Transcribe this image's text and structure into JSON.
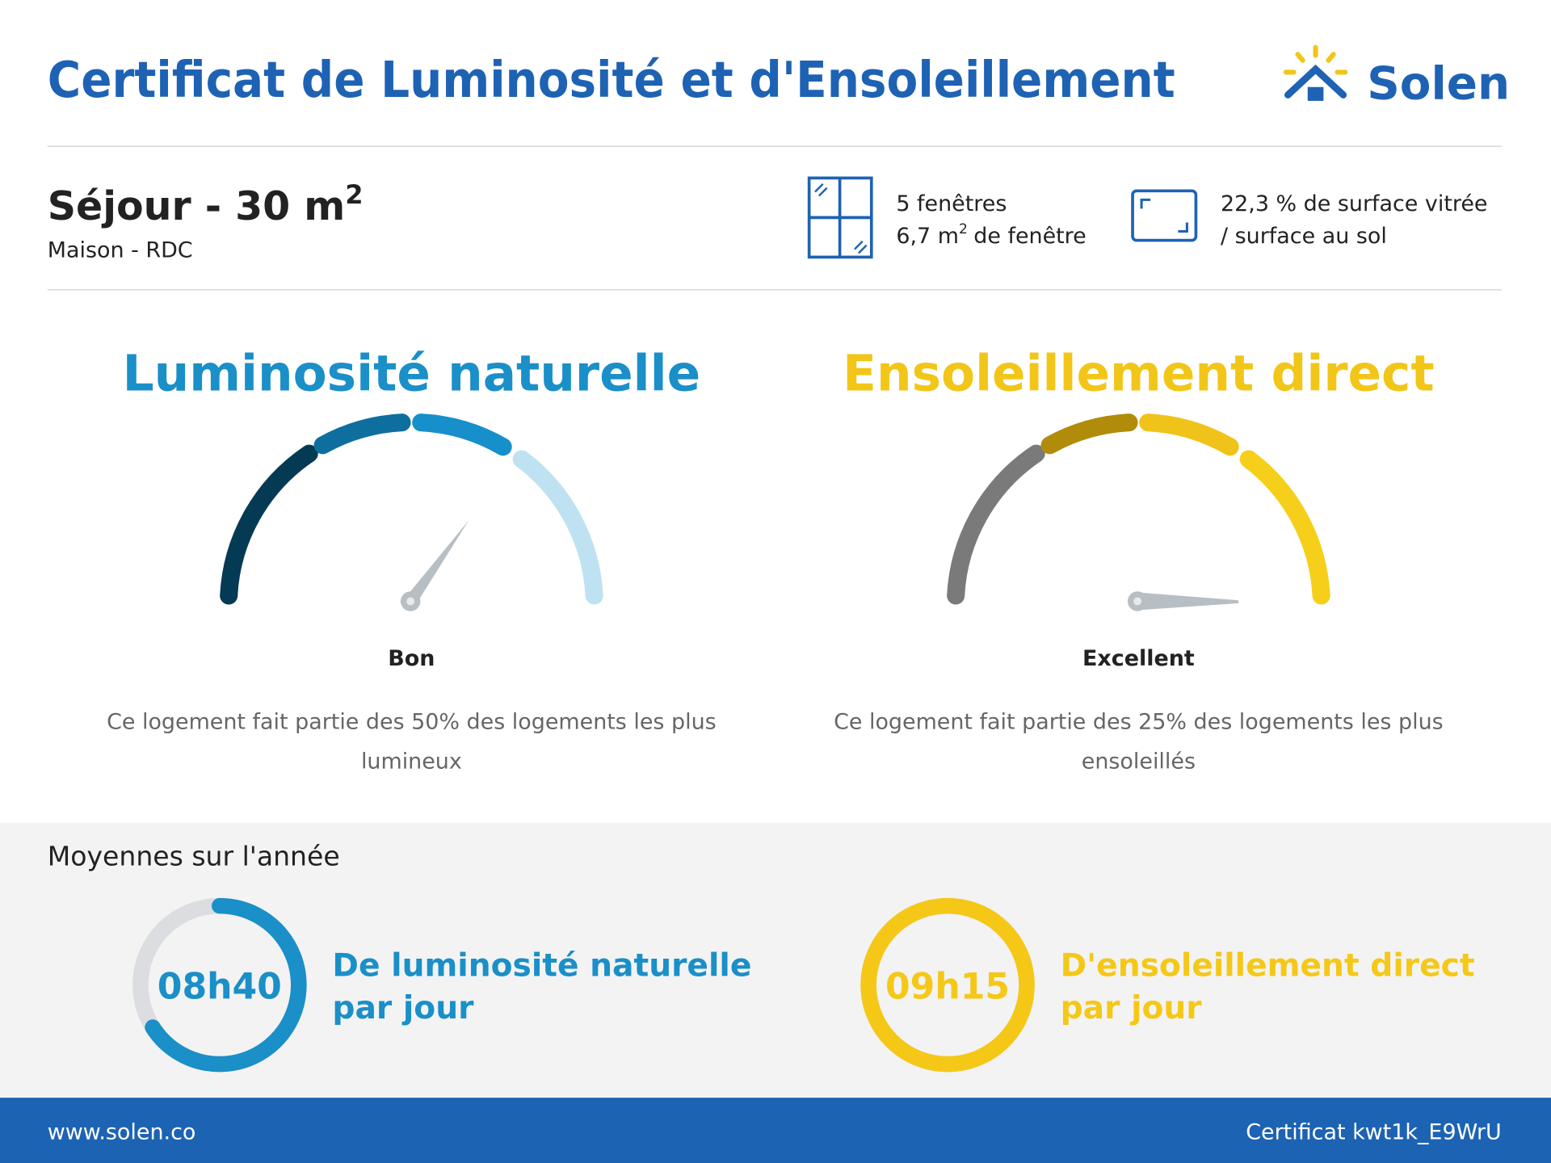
{
  "header": {
    "title": "Certificat de Luminosité et d'Ensoleillement",
    "logo": "Solen"
  },
  "room": {
    "name": "Séjour - 30 m",
    "name_sup": "2",
    "location": "Maison - RDC"
  },
  "windows": {
    "count": "5 fenêtres",
    "area": "6,7 m",
    "area_sup": "2",
    "area_suffix": "de fenêtre"
  },
  "glazing": {
    "lines": [
      "22,3 % de surface vitrée",
      "/ surface au sol"
    ]
  },
  "gauges": [
    {
      "title": "Luminosité naturelle",
      "color": "#1a8fc8",
      "segment_colors": [
        "#053a55",
        "#0e6f9e",
        "#168fca",
        "#bfe2f2"
      ],
      "rating": "Bon",
      "description": [
        "Ce logement fait partie des 50% des logements les plus",
        "lumineux"
      ]
    },
    {
      "title": "Ensoleillement direct",
      "color": "#f2c618",
      "segment_colors": [
        "#7a7a7a",
        "#b08c0a",
        "#f0c31a",
        "#f5cf1a"
      ],
      "rating": "Excellent",
      "description": [
        "Ce logement fait partie des 25% des logements les plus",
        "ensoleillés"
      ]
    }
  ],
  "averages": {
    "title": "Moyennes sur l'année",
    "items": [
      {
        "time": "08h40",
        "fill": 0.66,
        "color": "#1a8fc8",
        "label": [
          "De luminosité naturelle",
          "par jour"
        ]
      },
      {
        "time": "09h15",
        "fill": 1.0,
        "color": "#f5c818",
        "label": [
          "D'ensoleillement direct",
          "par jour"
        ]
      }
    ]
  },
  "footer": {
    "website": "www.solen.co",
    "certificate": "Certificat kwt1k_E9WrU"
  }
}
